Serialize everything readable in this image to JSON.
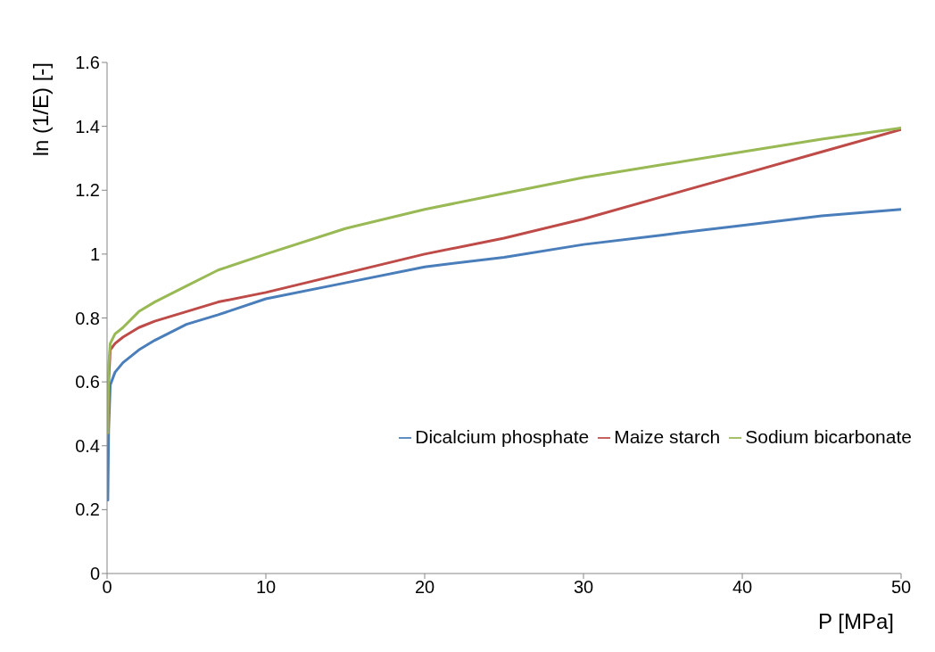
{
  "chart_data": {
    "type": "line",
    "xlabel": "P [MPa]",
    "ylabel": "ln (1/E) [-]",
    "xlim": [
      0,
      50
    ],
    "xticks": [
      0,
      10,
      20,
      30,
      40,
      50
    ],
    "ylim": [
      0,
      1.6
    ],
    "yticks": [
      0,
      {
        "value": 0.2,
        "label": "0.2"
      },
      {
        "value": 0.4,
        "label": "0.4"
      },
      {
        "value": 0.6,
        "label": "0.6"
      },
      {
        "value": 0.8,
        "label": "0.8"
      },
      1,
      {
        "value": 1.2,
        "label": "1.2"
      },
      {
        "value": 1.4,
        "label": "1.4"
      },
      {
        "value": 1.6,
        "label": "1.6"
      }
    ],
    "grid": false,
    "legend": "right",
    "marker": "none",
    "line_style": "solid",
    "x": [
      0.05,
      0.1,
      0.2,
      0.5,
      1,
      2,
      3,
      5,
      7,
      10,
      15,
      20,
      25,
      30,
      35,
      40,
      45,
      50
    ],
    "series": [
      {
        "name": "Dicalcium phosphate",
        "color": "#4a7ebb",
        "values": [
          0.23,
          0.45,
          0.59,
          0.63,
          0.66,
          0.7,
          0.73,
          0.78,
          0.81,
          0.86,
          0.91,
          0.96,
          0.99,
          1.03,
          1.06,
          1.09,
          1.12,
          1.14
        ]
      },
      {
        "name": "Maize starch",
        "color": "#be4b48",
        "values": [
          0.44,
          0.6,
          0.7,
          0.72,
          0.74,
          0.77,
          0.79,
          0.82,
          0.85,
          0.88,
          0.94,
          1.0,
          1.05,
          1.11,
          1.18,
          1.25,
          1.32,
          1.39
        ]
      },
      {
        "name": "Sodium bicarbonate",
        "color": "#98b954",
        "values": [
          0.44,
          0.65,
          0.72,
          0.75,
          0.77,
          0.82,
          0.85,
          0.9,
          0.95,
          1.0,
          1.08,
          1.14,
          1.19,
          1.24,
          1.28,
          1.32,
          1.36,
          1.395
        ]
      }
    ]
  }
}
